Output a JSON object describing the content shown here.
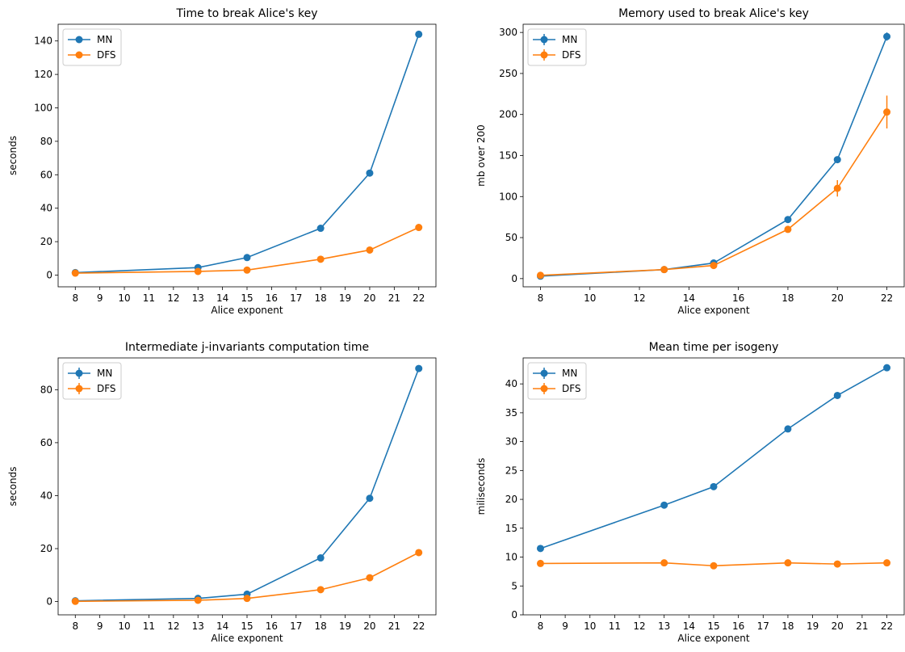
{
  "colors": {
    "MN": "#1f77b4",
    "DFS": "#ff7f0e"
  },
  "chart_data": [
    {
      "type": "line",
      "title": "Time to break Alice's key",
      "xlabel": "Alice exponent",
      "ylabel": "seconds",
      "x": [
        8,
        13,
        15,
        18,
        20,
        22
      ],
      "xticks": [
        8,
        9,
        10,
        11,
        12,
        13,
        14,
        15,
        16,
        17,
        18,
        19,
        20,
        21,
        22
      ],
      "yticks": [
        0,
        20,
        40,
        60,
        80,
        100,
        120,
        140
      ],
      "xlim": [
        7.3,
        22.7
      ],
      "ylim": [
        -7,
        150
      ],
      "legend": "top-left",
      "legend_style": "line-marker",
      "series": [
        {
          "name": "MN",
          "values": [
            1.5,
            4.5,
            10.5,
            28,
            61,
            144
          ]
        },
        {
          "name": "DFS",
          "values": [
            1.2,
            2.2,
            3,
            9.5,
            15,
            28.5
          ]
        }
      ]
    },
    {
      "type": "line",
      "title": "Memory used to break Alice's key",
      "xlabel": "Alice exponent",
      "ylabel": "mb over 200",
      "x": [
        8,
        13,
        15,
        18,
        20,
        22
      ],
      "xticks": [
        8,
        10,
        12,
        14,
        16,
        18,
        20,
        22
      ],
      "yticks": [
        0,
        50,
        100,
        150,
        200,
        250,
        300
      ],
      "xlim": [
        7.3,
        22.7
      ],
      "ylim": [
        -10,
        310
      ],
      "legend": "top-left",
      "legend_style": "errorbar",
      "series": [
        {
          "name": "MN",
          "values": [
            3,
            11,
            19,
            72,
            145,
            295
          ],
          "errors": [
            1,
            1,
            1,
            2,
            2,
            5
          ]
        },
        {
          "name": "DFS",
          "values": [
            4,
            11,
            16,
            60,
            110,
            203
          ],
          "errors": [
            1,
            1,
            1,
            2,
            10,
            20
          ]
        }
      ]
    },
    {
      "type": "line",
      "title": "Intermediate j-invariants computation time",
      "xlabel": "Alice exponent",
      "ylabel": "seconds",
      "x": [
        8,
        13,
        15,
        18,
        20,
        22
      ],
      "xticks": [
        8,
        9,
        10,
        11,
        12,
        13,
        14,
        15,
        16,
        17,
        18,
        19,
        20,
        21,
        22
      ],
      "yticks": [
        0,
        20,
        40,
        60,
        80
      ],
      "xlim": [
        7.3,
        22.7
      ],
      "ylim": [
        -5,
        92
      ],
      "legend": "top-left",
      "legend_style": "errorbar",
      "series": [
        {
          "name": "MN",
          "values": [
            0.3,
            1.2,
            2.8,
            16.5,
            39,
            88
          ]
        },
        {
          "name": "DFS",
          "values": [
            0.1,
            0.5,
            1.2,
            4.5,
            9,
            18.5
          ]
        }
      ]
    },
    {
      "type": "line",
      "title": "Mean time per isogeny",
      "xlabel": "Alice exponent",
      "ylabel": "miliseconds",
      "x": [
        8,
        13,
        15,
        18,
        20,
        22
      ],
      "xticks": [
        8,
        9,
        10,
        11,
        12,
        13,
        14,
        15,
        16,
        17,
        18,
        19,
        20,
        21,
        22
      ],
      "yticks": [
        0,
        5,
        10,
        15,
        20,
        25,
        30,
        35,
        40
      ],
      "xlim": [
        7.3,
        22.7
      ],
      "ylim": [
        0,
        44.5
      ],
      "legend": "top-left",
      "legend_style": "errorbar",
      "series": [
        {
          "name": "MN",
          "values": [
            11.5,
            19,
            22.2,
            32.2,
            38,
            42.8
          ]
        },
        {
          "name": "DFS",
          "values": [
            8.9,
            9,
            8.5,
            9,
            8.8,
            9
          ]
        }
      ]
    }
  ]
}
